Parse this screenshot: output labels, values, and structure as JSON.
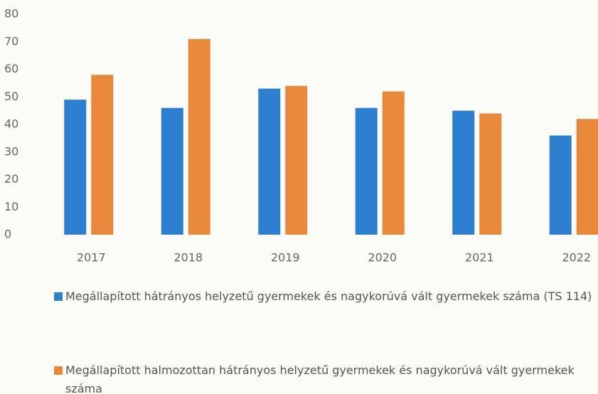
{
  "chart_data": {
    "type": "bar",
    "categories": [
      "2017",
      "2018",
      "2019",
      "2020",
      "2021",
      "2022"
    ],
    "series": [
      {
        "name": "Megállapított hátrányos helyzetű gyermekek és nagykorúvá vált gyermekek száma (TS 114)",
        "color": "#2e7fd0",
        "values": [
          49,
          46,
          53,
          46,
          45,
          36
        ]
      },
      {
        "name": "Megállapított halmozottan hátrányos helyzetű gyermekek és nagykorúvá vált gyermekek száma",
        "color": "#e8883a",
        "values": [
          58,
          71,
          54,
          52,
          44,
          42
        ]
      }
    ],
    "ylim": [
      0,
      80
    ],
    "yticks": [
      0,
      10,
      20,
      30,
      40,
      50,
      60,
      70,
      80
    ],
    "grid": false
  }
}
